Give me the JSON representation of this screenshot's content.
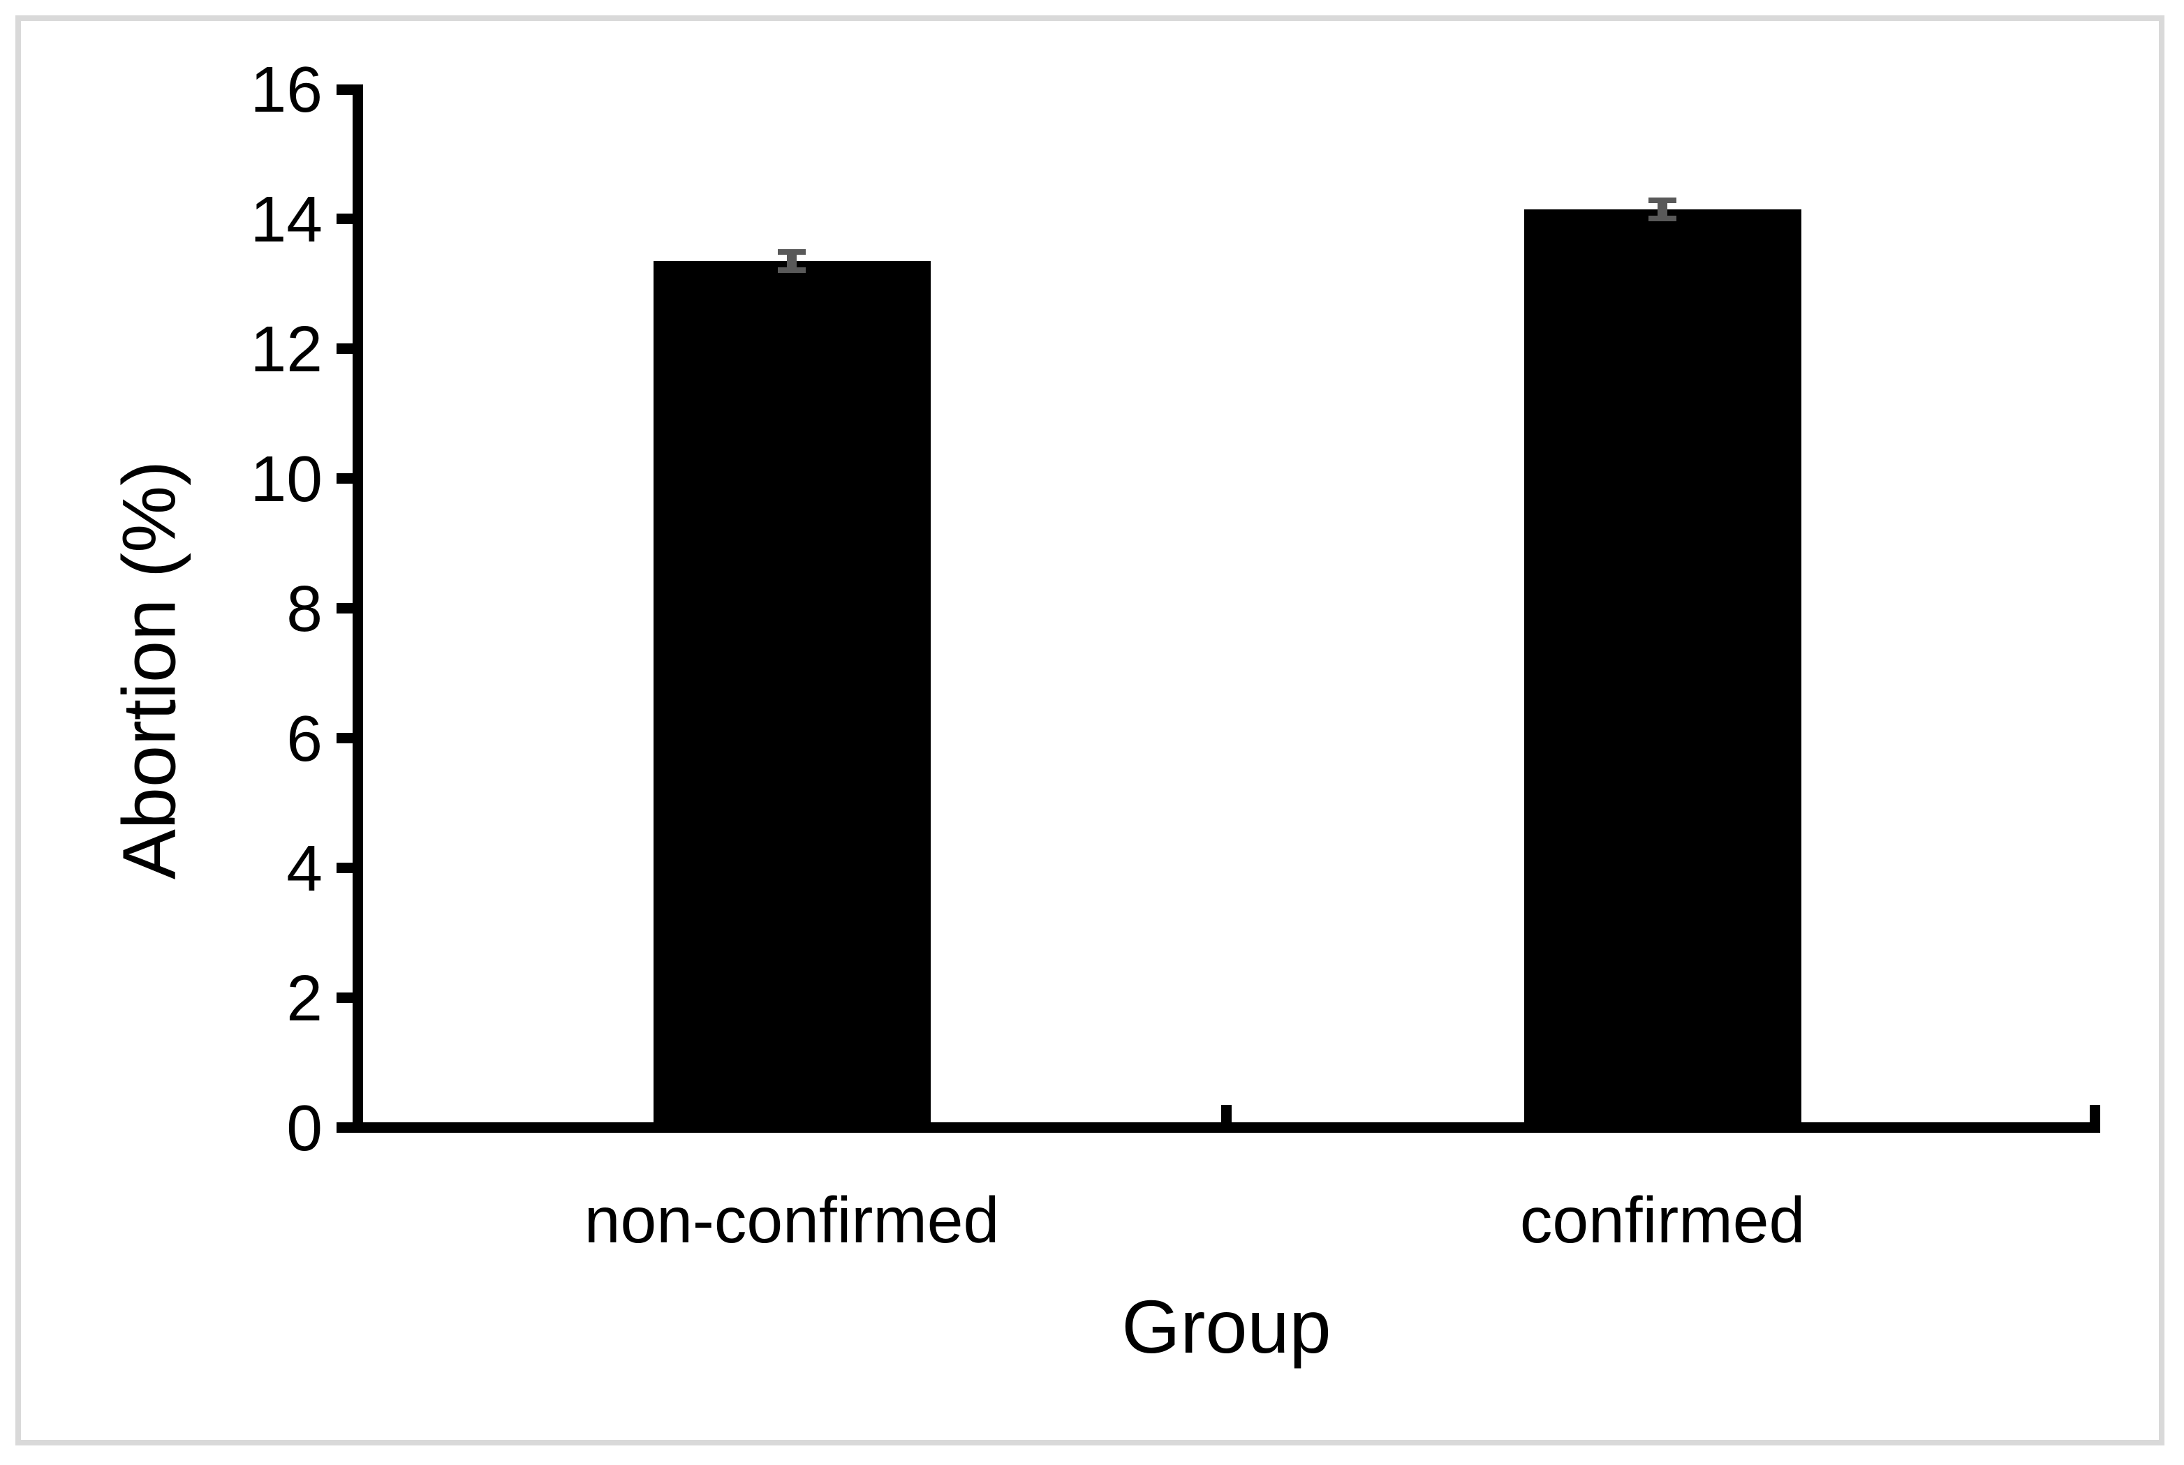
{
  "chart_data": {
    "type": "bar",
    "categories": [
      "non-confirmed",
      "confirmed"
    ],
    "values": [
      13.35,
      14.15
    ],
    "errors": [
      0.14,
      0.14
    ],
    "title": "",
    "xlabel": "Group",
    "ylabel": "Abortion (%)",
    "ylim": [
      0,
      16
    ],
    "ytick_step": 2,
    "ytick_labels": [
      "0",
      "2",
      "4",
      "6",
      "8",
      "10",
      "12",
      "14",
      "16"
    ],
    "grid": "off",
    "legend": "none",
    "bar_color": "#000000",
    "error_bar_color": "#595959",
    "axis_color": "#000000",
    "frame_color": "#d9d9d9",
    "background": "#ffffff"
  }
}
